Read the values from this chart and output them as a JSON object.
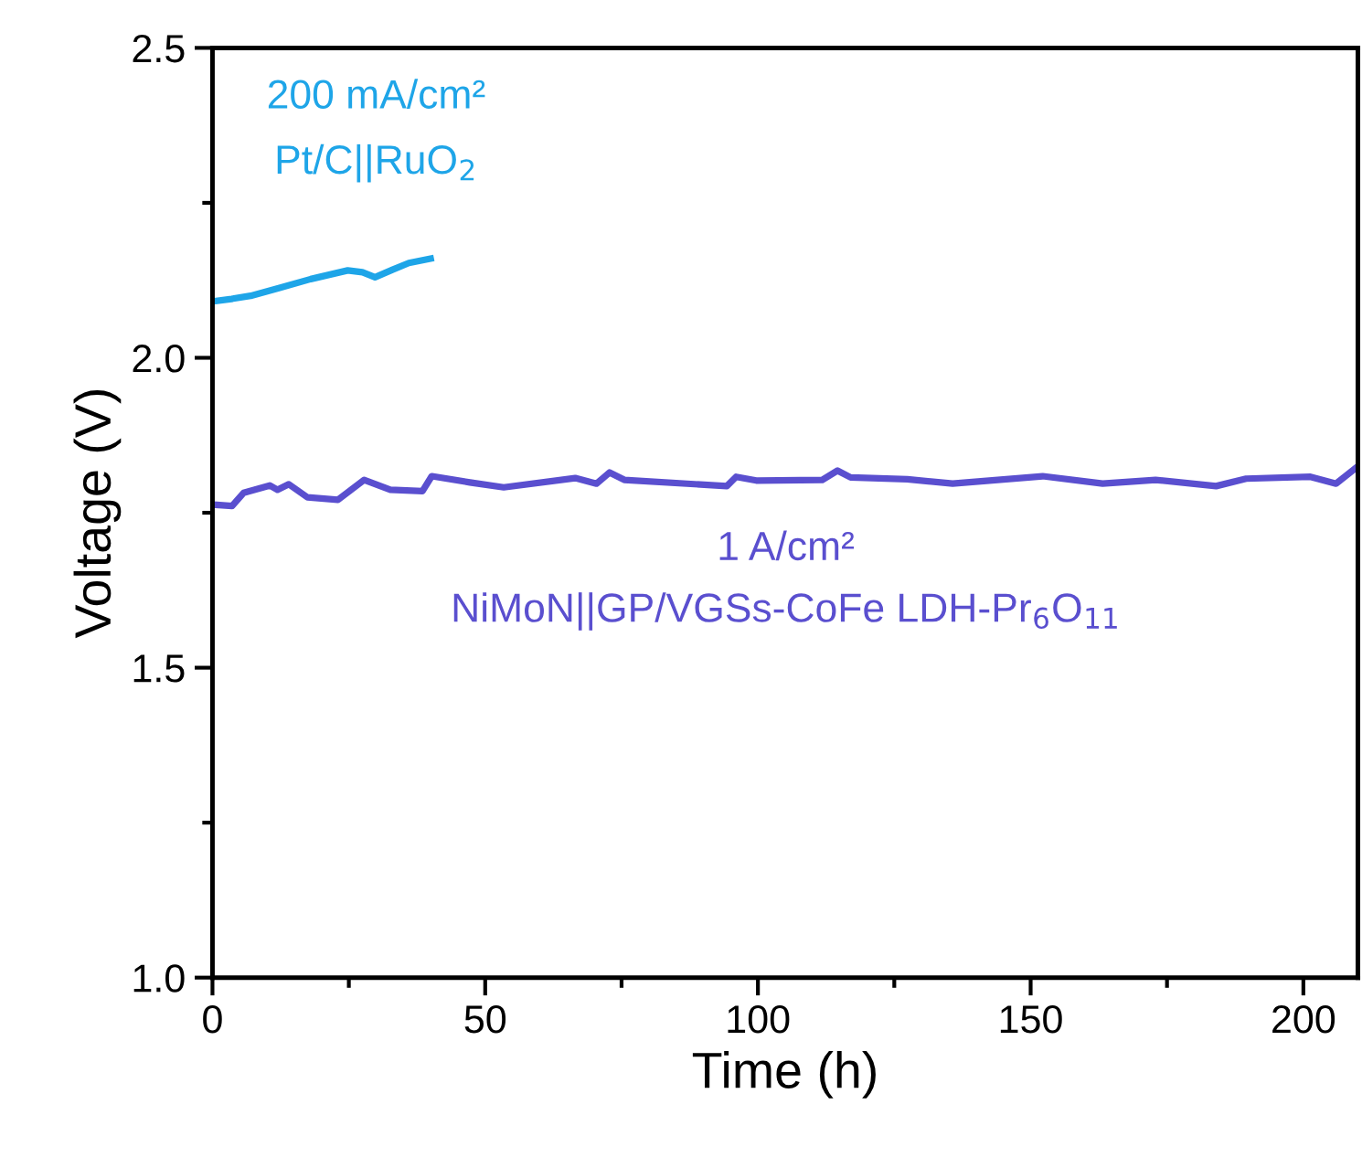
{
  "chart_data": {
    "type": "line",
    "xlabel": "Time (h)",
    "ylabel": "Voltage (V)",
    "xlim": [
      0,
      210
    ],
    "xticks": [
      0,
      50,
      100,
      150,
      200
    ],
    "ylim": [
      1.0,
      2.5
    ],
    "yticks": [
      {
        "value": 1,
        "label": "1.0"
      },
      1.5,
      {
        "value": 2,
        "label": "2.0"
      },
      2.5
    ],
    "grid": false,
    "legend": false,
    "marker": "none",
    "line_style": "solid",
    "series": [
      {
        "color": "#1ea5e8",
        "x": [
          0,
          3.5,
          7,
          12,
          18,
          24.8,
          27.5,
          29.8,
          33,
          36,
          40
        ],
        "values": [
          2.091,
          2.095,
          2.1,
          2.112,
          2.127,
          2.141,
          2.138,
          2.13,
          2.142,
          2.153,
          2.16
        ]
      },
      {
        "color": "#5a4fcf",
        "x": [
          0.2,
          3.6,
          5.7,
          10.5,
          11.9,
          14.0,
          17.4,
          23,
          27.8,
          32.6,
          38.5,
          40.2,
          47.2,
          53.4,
          66.5,
          70.4,
          72.8,
          75.5,
          94.3,
          96,
          99.7,
          111.8,
          114.6,
          117,
          127.4,
          135.7,
          152.2,
          163.2,
          172.9,
          184,
          189.5,
          201.3,
          206,
          210
        ],
        "values": [
          1.763,
          1.761,
          1.782,
          1.794,
          1.787,
          1.796,
          1.775,
          1.771,
          1.803,
          1.787,
          1.785,
          1.809,
          1.799,
          1.791,
          1.806,
          1.797,
          1.815,
          1.803,
          1.793,
          1.808,
          1.802,
          1.803,
          1.818,
          1.807,
          1.804,
          1.797,
          1.809,
          1.797,
          1.803,
          1.793,
          1.805,
          1.808,
          1.797,
          1.825
        ]
      }
    ],
    "annotations": [
      "200 mA/cm²",
      "Pt/C||RuO$_{2}$",
      "1 A/cm²",
      "NiMoN||GP/VGSs-CoFe LDH-Pr$_{6}$O$_{11}$"
    ]
  }
}
